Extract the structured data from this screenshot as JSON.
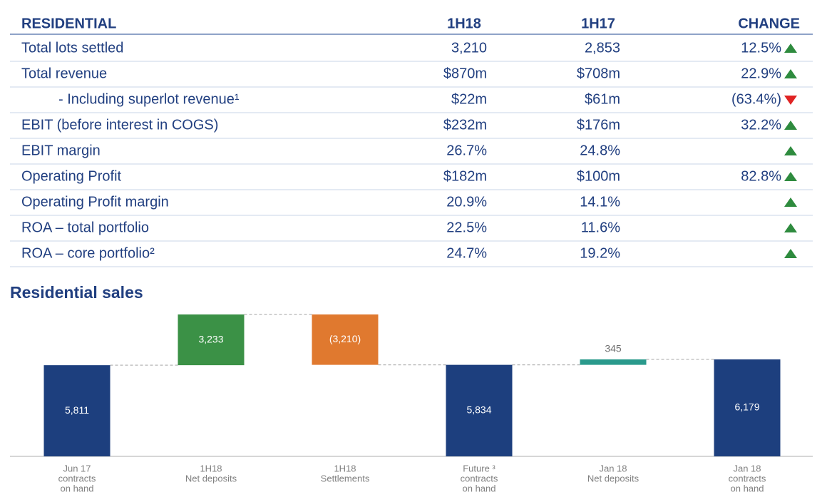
{
  "table": {
    "header": [
      "RESIDENTIAL",
      "1H18",
      "1H17",
      "CHANGE"
    ],
    "rows": [
      {
        "label": "Total lots settled",
        "h18": "3,210",
        "h17": "2,853",
        "change": "12.5%",
        "direction": "up"
      },
      {
        "label": "Total revenue",
        "h18": "$870m",
        "h17": "$708m",
        "change": "22.9%",
        "direction": "up"
      },
      {
        "label": "- Including superlot revenue¹",
        "h18": "$22m",
        "h17": "$61m",
        "change": "(63.4%)",
        "direction": "down",
        "indent": true
      },
      {
        "label": "EBIT (before interest in COGS)",
        "h18": "$232m",
        "h17": "$176m",
        "change": "32.2%",
        "direction": "up"
      },
      {
        "label": "EBIT margin",
        "h18": "26.7%",
        "h17": "24.8%",
        "change": null,
        "direction": "up"
      },
      {
        "label": "Operating Profit",
        "h18": "$182m",
        "h17": "$100m",
        "change": "82.8%",
        "direction": "up"
      },
      {
        "label": "Operating Profit margin",
        "h18": "20.9%",
        "h17": "14.1%",
        "change": null,
        "direction": "up"
      },
      {
        "label": "ROA – total portfolio",
        "h18": "22.5%",
        "h17": "11.6%",
        "change": null,
        "direction": "up"
      },
      {
        "label": "ROA – core portfolio²",
        "h18": "24.7%",
        "h17": "19.2%",
        "change": null,
        "direction": "up"
      }
    ]
  },
  "chart_data": {
    "type": "waterfall",
    "title": "Residential sales",
    "categories": [
      [
        "Jun 17",
        "contracts",
        "on hand"
      ],
      [
        "1H18",
        "Net deposits"
      ],
      [
        "1H18",
        "Settlements"
      ],
      [
        "Future ³",
        "contracts",
        "on hand"
      ],
      [
        "Jan 18",
        "Net deposits"
      ],
      [
        "Jan 18",
        "contracts",
        "on hand"
      ]
    ],
    "values": [
      5811,
      3233,
      -3210,
      5834,
      345,
      6179
    ],
    "value_labels": [
      "5,811",
      "3,233",
      "(3,210)",
      "5,834",
      "345",
      "6,179"
    ],
    "kinds": [
      "total",
      "delta",
      "delta",
      "total",
      "delta",
      "total"
    ],
    "colors": [
      "#1d3f7e",
      "#3b9146",
      "#e0792f",
      "#1d3f7e",
      "#2a9a8c",
      "#1d3f7e"
    ]
  }
}
